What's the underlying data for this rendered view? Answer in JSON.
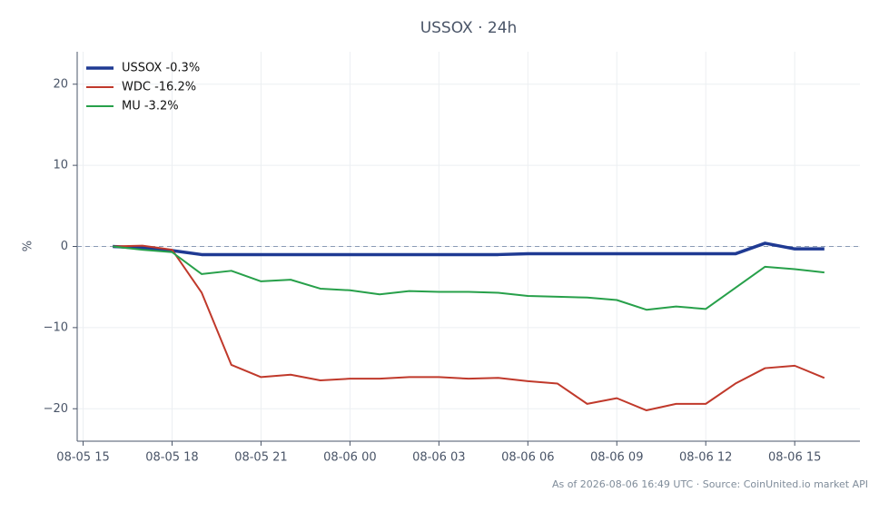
{
  "chart_data": {
    "type": "line",
    "title": "USSOX · 24h",
    "ylabel": "%",
    "footer": "As of 2026-08-06 16:49 UTC · Source: CoinUnited.io market API",
    "x": [
      16,
      17,
      18,
      19,
      20,
      21,
      22,
      23,
      24,
      25,
      26,
      27,
      28,
      29,
      30,
      31,
      32,
      33,
      34,
      35,
      36,
      37,
      38,
      39,
      40
    ],
    "xlim": [
      14.8,
      41.2
    ],
    "xticks": [
      {
        "value": 15,
        "label": "08-05 15"
      },
      {
        "value": 18,
        "label": "08-05 18"
      },
      {
        "value": 21,
        "label": "08-05 21"
      },
      {
        "value": 24,
        "label": "08-06 00"
      },
      {
        "value": 27,
        "label": "08-06 03"
      },
      {
        "value": 30,
        "label": "08-06 06"
      },
      {
        "value": 33,
        "label": "08-06 09"
      },
      {
        "value": 36,
        "label": "08-06 12"
      },
      {
        "value": 39,
        "label": "08-06 15"
      }
    ],
    "ylim": [
      -24,
      24
    ],
    "yticks": [
      {
        "value": -20,
        "label": "−20"
      },
      {
        "value": -10,
        "label": "−10"
      },
      0,
      10,
      20
    ],
    "grid": true,
    "legend": "upper left",
    "reference_line": 0,
    "series": [
      {
        "name": "USSOX -0.3%",
        "color": "#1f3a93",
        "width": 3.5,
        "values": [
          0,
          -0.2,
          -0.5,
          -1.0,
          -1.0,
          -1.0,
          -1.0,
          -1.0,
          -1.0,
          -1.0,
          -1.0,
          -1.0,
          -1.0,
          -1.0,
          -0.9,
          -0.9,
          -0.9,
          -0.9,
          -0.9,
          -0.9,
          -0.9,
          -0.9,
          0.4,
          -0.3,
          -0.3
        ]
      },
      {
        "name": "WDC -16.2%",
        "color": "#c0392b",
        "width": 2,
        "values": [
          0,
          0.1,
          -0.4,
          -5.7,
          -14.6,
          -16.1,
          -15.8,
          -16.5,
          -16.3,
          -16.3,
          -16.1,
          -16.1,
          -16.3,
          -16.2,
          -16.6,
          -16.9,
          -19.4,
          -18.7,
          -20.2,
          -19.4,
          -19.4,
          -16.9,
          -15.0,
          -14.7,
          -16.2
        ]
      },
      {
        "name": "MU -3.2%",
        "color": "#27a04a",
        "width": 2,
        "values": [
          0,
          -0.4,
          -0.7,
          -3.4,
          -3.0,
          -4.3,
          -4.1,
          -5.2,
          -5.4,
          -5.9,
          -5.5,
          -5.6,
          -5.6,
          -5.7,
          -6.1,
          -6.2,
          -6.3,
          -6.6,
          -7.8,
          -7.4,
          -7.7,
          -5.1,
          -2.5,
          -2.8,
          -3.2
        ]
      }
    ]
  }
}
